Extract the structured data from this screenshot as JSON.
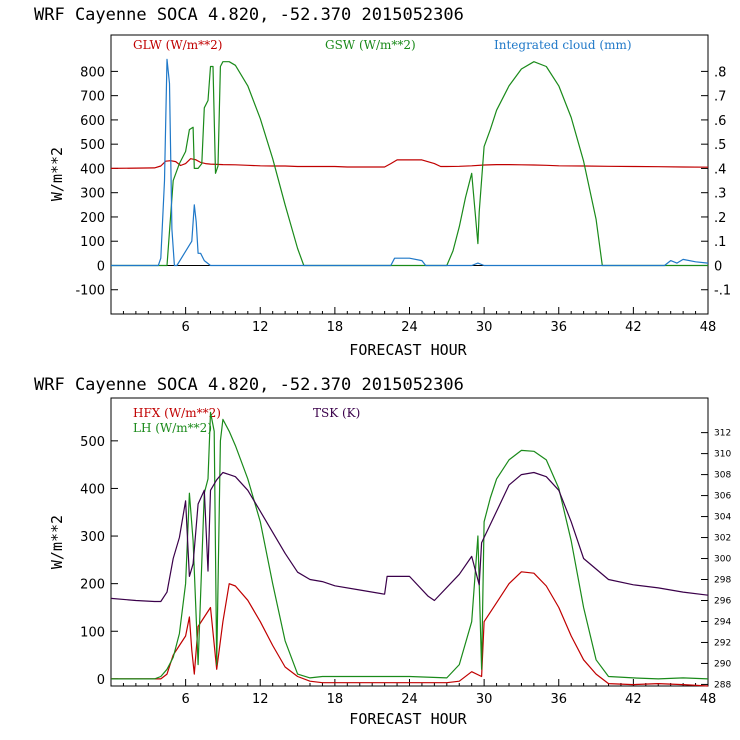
{
  "chart_data": [
    {
      "type": "line",
      "title": "WRF   Cayenne SOCA   4.820, -52.370  2015052306",
      "xlabel": "FORECAST HOUR",
      "ylabel": "W/m**2",
      "xlim": [
        0,
        48
      ],
      "ylim": [
        -200,
        950
      ],
      "y2lim": [
        -0.2,
        0.95
      ],
      "x_ticks": [
        6,
        12,
        18,
        24,
        30,
        36,
        42,
        48
      ],
      "x_tick_labels": [
        "6",
        "12",
        "18",
        "24",
        "30",
        "36",
        "42",
        "48"
      ],
      "y_ticks": [
        -100,
        0,
        100,
        200,
        300,
        400,
        500,
        600,
        700,
        800
      ],
      "y_tick_labels": [
        "-100",
        "0",
        "100",
        "200",
        "300",
        "400",
        "500",
        "600",
        "700",
        "800"
      ],
      "y2_ticks": [
        -0.1,
        0,
        0.1,
        0.2,
        0.3,
        0.4,
        0.5,
        0.6,
        0.7,
        0.8
      ],
      "y2_tick_labels": [
        "-.1",
        "0",
        ".1",
        ".2",
        ".3",
        ".4",
        ".5",
        ".6",
        ".7",
        ".8"
      ],
      "legend": [
        {
          "label": "GLW (W/m**2)",
          "color": "#c00000"
        },
        {
          "label": "GSW (W/m**2)",
          "color": "#1a8a1a"
        },
        {
          "label": "Integrated cloud (mm)",
          "color": "#1f78c8"
        }
      ],
      "series": [
        {
          "name": "GLW (W/m**2)",
          "color": "#c00000",
          "axis": "left",
          "x": [
            0,
            3.5,
            4,
            4.4,
            4.8,
            5.2,
            5.6,
            6,
            6.4,
            6.8,
            7.2,
            7.6,
            8,
            9,
            10,
            11,
            12,
            13,
            14,
            15,
            16,
            17,
            18,
            19,
            20,
            21,
            22,
            22.5,
            23,
            25,
            26,
            26.5,
            27,
            28,
            29,
            30,
            31,
            32,
            33,
            34,
            35,
            36,
            38,
            40,
            42,
            44,
            46,
            48
          ],
          "y": [
            400,
            402,
            410,
            430,
            432,
            428,
            412,
            420,
            440,
            436,
            425,
            420,
            418,
            416,
            415,
            413,
            411,
            410,
            410,
            408,
            408,
            408,
            408,
            406,
            406,
            406,
            406,
            420,
            435,
            435,
            420,
            408,
            408,
            409,
            411,
            414,
            416,
            416,
            415,
            414,
            413,
            411,
            410,
            409,
            408,
            407,
            406,
            405
          ]
        },
        {
          "name": "GSW (W/m**2)",
          "color": "#1a8a1a",
          "axis": "left",
          "x": [
            0,
            3.5,
            4,
            4.5,
            5,
            5.5,
            6,
            6.3,
            6.6,
            6.7,
            7,
            7.3,
            7.5,
            7.8,
            8,
            8.2,
            8.4,
            8.6,
            8.8,
            9,
            9.5,
            10,
            11,
            12,
            13,
            14,
            15,
            15.5,
            27,
            27.5,
            28,
            28.5,
            29,
            29.5,
            29.6,
            30,
            30.5,
            31,
            32,
            33,
            34,
            35,
            36,
            37,
            38,
            39,
            39.5,
            48
          ],
          "y": [
            0,
            0,
            0,
            0,
            350,
            420,
            470,
            560,
            570,
            400,
            400,
            420,
            650,
            680,
            820,
            820,
            380,
            410,
            820,
            840,
            840,
            825,
            740,
            605,
            440,
            250,
            70,
            0,
            0,
            60,
            160,
            280,
            380,
            90,
            220,
            490,
            560,
            640,
            740,
            810,
            840,
            820,
            740,
            610,
            430,
            190,
            0,
            0
          ]
        },
        {
          "name": "Integrated cloud (mm)",
          "color": "#1f78c8",
          "axis": "right",
          "x": [
            0,
            3.8,
            4,
            4.3,
            4.5,
            4.7,
            4.9,
            5.1,
            5.3,
            6.5,
            6.7,
            6.85,
            7,
            7.2,
            7.5,
            8,
            22.5,
            22.8,
            24,
            25,
            25.3,
            27.5,
            28,
            29,
            29.5,
            30,
            44.5,
            45,
            45.5,
            46,
            47,
            48
          ],
          "y": [
            0,
            0,
            0.03,
            0.35,
            0.85,
            0.75,
            0.15,
            0,
            0,
            0.1,
            0.25,
            0.18,
            0.05,
            0.05,
            0.02,
            0,
            0,
            0.03,
            0.03,
            0.02,
            0,
            0,
            0,
            0,
            0.01,
            0,
            0,
            0.02,
            0.01,
            0.025,
            0.015,
            0.01
          ]
        }
      ]
    },
    {
      "type": "line",
      "title": "WRF   Cayenne SOCA   4.820, -52.370  2015052306",
      "xlabel": "FORECAST HOUR",
      "ylabel": "W/m**2",
      "xlim": [
        0,
        48
      ],
      "ylim": [
        -15,
        590
      ],
      "y2lim": [
        287.85,
        315.3
      ],
      "x_ticks": [
        6,
        12,
        18,
        24,
        30,
        36,
        42,
        48
      ],
      "x_tick_labels": [
        "6",
        "12",
        "18",
        "24",
        "30",
        "36",
        "42",
        "48"
      ],
      "y_ticks": [
        0,
        100,
        200,
        300,
        400,
        500
      ],
      "y_tick_labels": [
        "0",
        "100",
        "200",
        "300",
        "400",
        "500"
      ],
      "y2_ticks": [
        288,
        290,
        292,
        294,
        296,
        298,
        300,
        302,
        304,
        306,
        308,
        310,
        312
      ],
      "y2_tick_labels": [
        "288",
        "290",
        "292",
        "294",
        "296",
        "298",
        "300",
        "302",
        "304",
        "306",
        "308",
        "310",
        "312"
      ],
      "legend": [
        {
          "label": "HFX (W/m**2)",
          "color": "#c00000"
        },
        {
          "label": "LH  (W/m**2)",
          "color": "#1a8a1a"
        },
        {
          "label": "TSK (K)",
          "color": "#3a004a"
        }
      ],
      "series": [
        {
          "name": "HFX (W/m**2)",
          "color": "#c00000",
          "axis": "left",
          "x": [
            0,
            3.5,
            4,
            4.5,
            5,
            5.5,
            6,
            6.3,
            6.5,
            6.7,
            7,
            7.5,
            8,
            8.5,
            9,
            9.5,
            10,
            11,
            12,
            13,
            14,
            15,
            16,
            17,
            20,
            24,
            27,
            28,
            29,
            29.8,
            30,
            31,
            32,
            33,
            34,
            35,
            36,
            37,
            38,
            39,
            40,
            42,
            44,
            46,
            48
          ],
          "y": [
            0,
            0,
            0,
            10,
            50,
            70,
            90,
            130,
            60,
            10,
            110,
            130,
            150,
            20,
            120,
            200,
            195,
            165,
            120,
            70,
            25,
            5,
            -5,
            -8,
            -8,
            -8,
            -8,
            -5,
            15,
            5,
            120,
            160,
            200,
            225,
            222,
            195,
            150,
            90,
            40,
            10,
            -10,
            -12,
            -10,
            -12,
            -15
          ]
        },
        {
          "name": "LH  (W/m**2)",
          "color": "#1a8a1a",
          "axis": "left",
          "x": [
            0,
            3.5,
            4,
            4.5,
            5,
            5.5,
            6,
            6.3,
            6.6,
            7,
            7.5,
            7.8,
            8,
            8.3,
            8.5,
            8.8,
            9,
            9.5,
            10,
            11,
            12,
            13,
            14,
            15,
            16,
            17,
            18,
            24,
            27,
            28,
            29,
            29.5,
            29.8,
            30,
            30.5,
            31,
            32,
            33,
            34,
            35,
            36,
            37,
            38,
            39,
            40,
            42,
            44,
            46,
            48
          ],
          "y": [
            0,
            0,
            5,
            20,
            45,
            95,
            200,
            390,
            290,
            30,
            390,
            420,
            560,
            520,
            30,
            500,
            545,
            520,
            490,
            420,
            330,
            200,
            80,
            10,
            2,
            5,
            5,
            5,
            2,
            30,
            120,
            300,
            20,
            330,
            380,
            420,
            460,
            480,
            478,
            460,
            400,
            290,
            150,
            40,
            5,
            2,
            0,
            2,
            0
          ]
        },
        {
          "name": "TSK (K)",
          "color": "#3a004a",
          "axis": "right",
          "x": [
            0,
            2,
            3.5,
            4,
            4.5,
            5,
            5.5,
            6,
            6.3,
            6.6,
            7,
            7.5,
            7.8,
            8,
            8.5,
            9,
            9.5,
            10,
            11,
            12,
            13,
            14,
            15,
            16,
            17,
            18,
            20,
            22,
            22.2,
            24,
            25.5,
            26,
            28,
            29,
            29.6,
            29.8,
            30,
            31,
            32,
            33,
            34,
            35,
            36,
            37,
            38,
            40,
            42,
            44,
            46,
            48
          ],
          "y": [
            296.2,
            296.0,
            295.9,
            295.9,
            296.8,
            300.0,
            302.0,
            305.5,
            298.3,
            299.5,
            305.2,
            306.5,
            298.8,
            306.5,
            307.5,
            308.2,
            308.0,
            307.8,
            306.5,
            304.5,
            302.5,
            300.5,
            298.7,
            298.0,
            297.8,
            297.4,
            297.0,
            296.6,
            298.3,
            298.3,
            296.4,
            296.0,
            298.5,
            300.2,
            297.5,
            301.5,
            302.0,
            304.5,
            307.0,
            308.0,
            308.2,
            307.8,
            306.5,
            303.5,
            300.0,
            298.0,
            297.5,
            297.2,
            296.8,
            296.5
          ]
        }
      ]
    }
  ]
}
